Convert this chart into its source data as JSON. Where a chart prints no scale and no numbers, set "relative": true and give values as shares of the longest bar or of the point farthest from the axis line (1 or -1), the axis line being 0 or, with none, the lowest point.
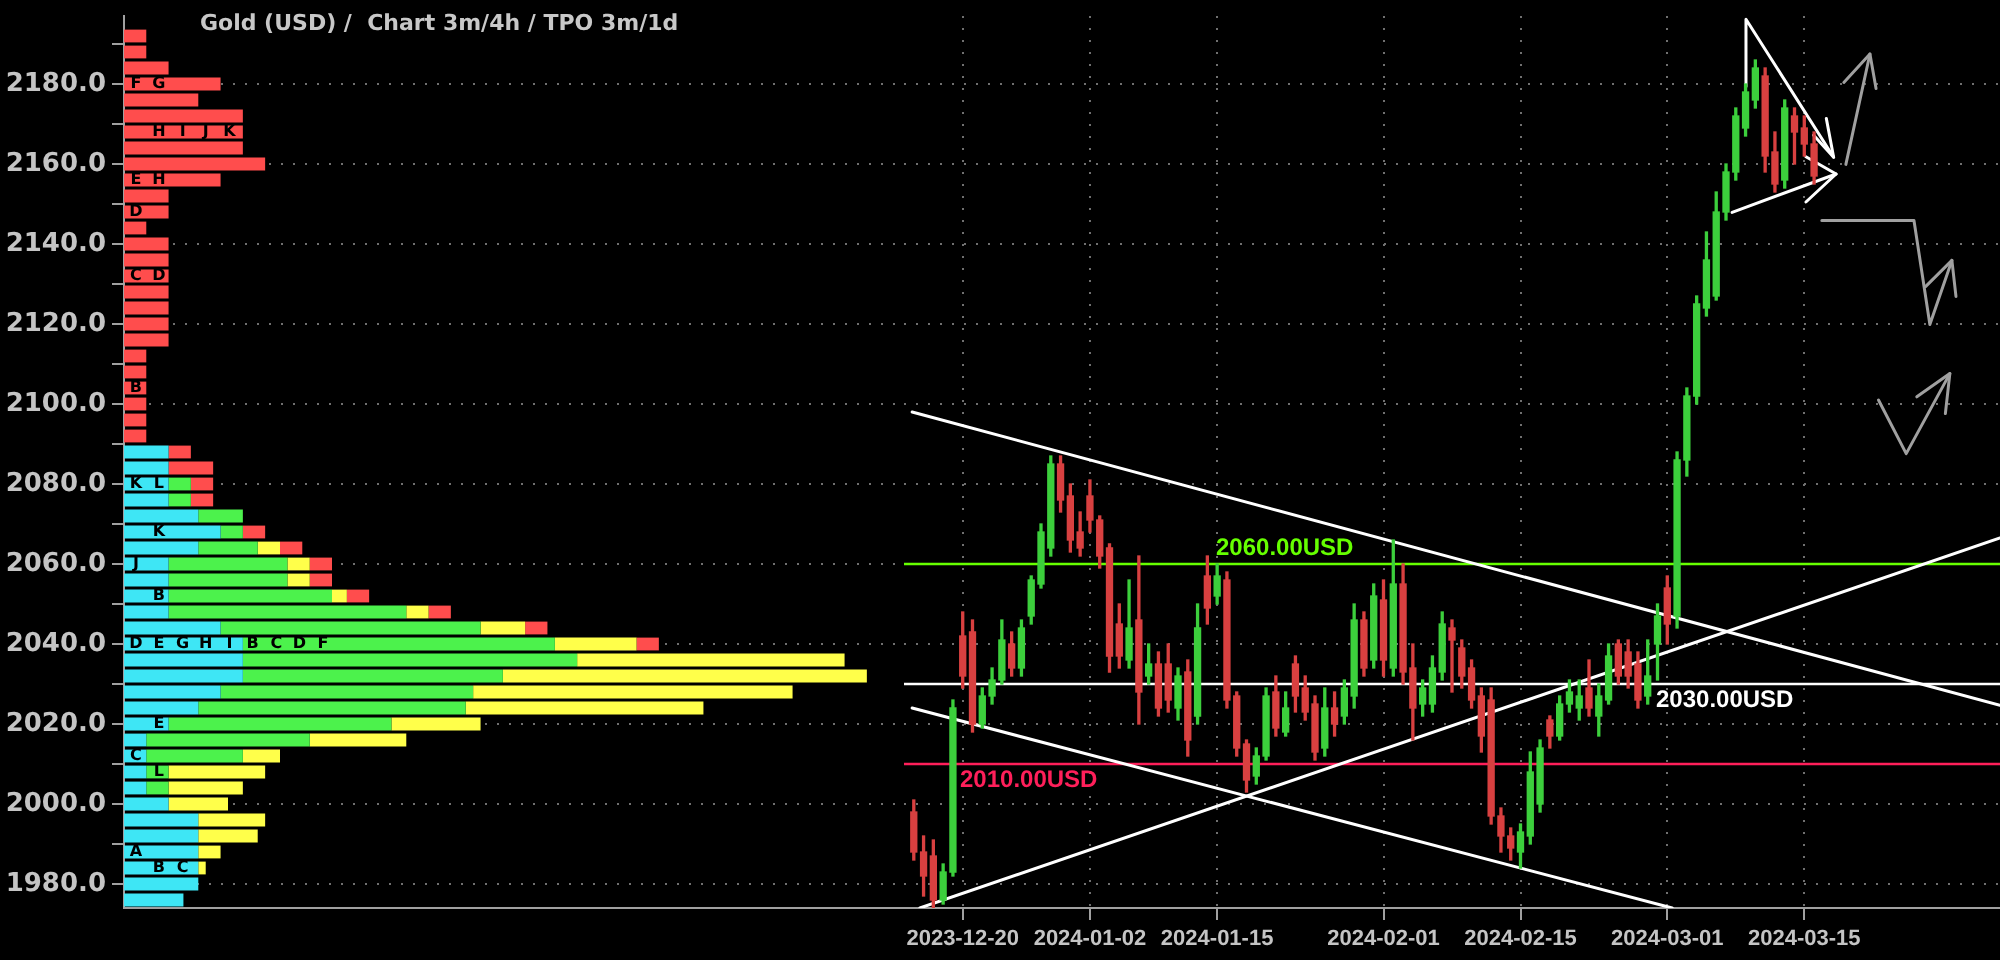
{
  "chart_data": [
    {
      "type": "bar",
      "title": "Gold (USD) /  Chart 3m/4h / TPO 3m/1d",
      "orientation": "horizontal",
      "stacked": true,
      "relative": true,
      "grid": "y",
      "tick_labels": "y",
      "x": [
        1976,
        1980,
        1984,
        1988,
        1992,
        1996,
        2000,
        2004,
        2008,
        2012,
        2016,
        2020,
        2024,
        2028,
        2032,
        2036,
        2040,
        2044,
        2048,
        2052,
        2056,
        2060,
        2064,
        2068,
        2072,
        2076,
        2080,
        2084,
        2088,
        2092,
        2096,
        2100,
        2104,
        2108,
        2112,
        2116,
        2120,
        2124,
        2128,
        2132,
        2136,
        2140,
        2144,
        2148,
        2152,
        2156,
        2160,
        2164,
        2168,
        2172,
        2176,
        2180,
        2184,
        2188,
        2192
      ],
      "ylim": [
        1974,
        2197
      ],
      "yticks": [
        {
          "value": 1980,
          "label": "1980.0"
        },
        {
          "value": 1990,
          "label": null
        },
        {
          "value": 2000,
          "label": "2000.0"
        },
        {
          "value": 2010,
          "label": null
        },
        {
          "value": 2020,
          "label": "2020.0"
        },
        {
          "value": 2030,
          "label": null
        },
        {
          "value": 2040,
          "label": "2040.0"
        },
        {
          "value": 2050,
          "label": null
        },
        {
          "value": 2060,
          "label": "2060.0"
        },
        {
          "value": 2070,
          "label": null
        },
        {
          "value": 2080,
          "label": "2080.0"
        },
        {
          "value": 2090,
          "label": null
        },
        {
          "value": 2100,
          "label": "2100.0"
        },
        {
          "value": 2110,
          "label": null
        },
        {
          "value": 2120,
          "label": "2120.0"
        },
        {
          "value": 2130,
          "label": null
        },
        {
          "value": 2140,
          "label": "2140.0"
        },
        {
          "value": 2150,
          "label": null
        },
        {
          "value": 2160,
          "label": "2160.0"
        },
        {
          "value": 2170,
          "label": null
        },
        {
          "value": 2180,
          "label": "2180.0"
        },
        {
          "value": 2190,
          "label": null
        }
      ],
      "series": [
        {
          "color": "#3ee6f5",
          "values": [
            0.08,
            0.1,
            0.1,
            0.1,
            0.1,
            0.1,
            0.06,
            0.03,
            0.03,
            0.03,
            0.03,
            0.06,
            0.1,
            0.13,
            0.16,
            0.16,
            0.16,
            0.13,
            0.06,
            0.06,
            0.06,
            0.06,
            0.1,
            0.13,
            0.1,
            0.06,
            0.06,
            0.06,
            0.06,
            0,
            0,
            0,
            0,
            0,
            0,
            0,
            0,
            0,
            0,
            0,
            0,
            0,
            0,
            0,
            0,
            0,
            0,
            0,
            0,
            0,
            0,
            0,
            0,
            0,
            0
          ]
        },
        {
          "color": "#4cf24c",
          "values": [
            0,
            0,
            0,
            0,
            0,
            0,
            0,
            0.03,
            0.03,
            0.13,
            0.22,
            0.3,
            0.36,
            0.34,
            0.35,
            0.45,
            0.42,
            0.35,
            0.32,
            0.22,
            0.16,
            0.16,
            0.08,
            0.03,
            0.06,
            0.03,
            0.03,
            0,
            0,
            0,
            0,
            0,
            0,
            0,
            0,
            0,
            0,
            0,
            0,
            0,
            0,
            0,
            0,
            0,
            0,
            0,
            0,
            0,
            0,
            0,
            0,
            0,
            0,
            0,
            0
          ]
        },
        {
          "color": "#ffff4a",
          "values": [
            0,
            0,
            0.01,
            0.03,
            0.08,
            0.09,
            0.08,
            0.1,
            0.13,
            0.05,
            0.13,
            0.12,
            0.32,
            0.43,
            0.49,
            0.36,
            0.11,
            0.06,
            0.03,
            0.02,
            0.03,
            0.03,
            0.03,
            0,
            0,
            0,
            0,
            0,
            0,
            0,
            0,
            0,
            0,
            0,
            0,
            0,
            0,
            0,
            0,
            0,
            0,
            0,
            0,
            0,
            0,
            0,
            0,
            0,
            0,
            0,
            0,
            0,
            0,
            0,
            0
          ]
        },
        {
          "color": "#ff4d4d",
          "values": [
            0,
            0,
            0,
            0,
            0,
            0,
            0,
            0,
            0,
            0,
            0,
            0,
            0,
            0,
            0,
            0,
            0.03,
            0.03,
            0.03,
            0.03,
            0.03,
            0.03,
            0.03,
            0.03,
            0,
            0.03,
            0.03,
            0.06,
            0.03,
            0.03,
            0.03,
            0.03,
            0.03,
            0.03,
            0.03,
            0.06,
            0.06,
            0.06,
            0.06,
            0.06,
            0.06,
            0.06,
            0.03,
            0.06,
            0.06,
            0.13,
            0.19,
            0.16,
            0.16,
            0.16,
            0.1,
            0.13,
            0.06,
            0.03,
            0.03
          ]
        }
      ],
      "annotations": [
        {
          "text": "F",
          "x": 0.016,
          "y": 2180
        },
        {
          "text": "G",
          "x": 0.047,
          "y": 2180
        },
        {
          "text": "H",
          "x": 0.047,
          "y": 2168
        },
        {
          "text": "I",
          "x": 0.079,
          "y": 2168
        },
        {
          "text": "J",
          "x": 0.11,
          "y": 2168
        },
        {
          "text": "K",
          "x": 0.142,
          "y": 2168
        },
        {
          "text": "E",
          "x": 0.016,
          "y": 2156
        },
        {
          "text": "H",
          "x": 0.047,
          "y": 2156
        },
        {
          "text": "D",
          "x": 0.016,
          "y": 2148
        },
        {
          "text": "D",
          "x": 0.047,
          "y": 2132
        },
        {
          "text": "C",
          "x": 0.016,
          "y": 2132
        },
        {
          "text": "B",
          "x": 0.016,
          "y": 2104
        },
        {
          "text": "K",
          "x": 0.016,
          "y": 2080
        },
        {
          "text": "L",
          "x": 0.047,
          "y": 2080
        },
        {
          "text": "K",
          "x": 0.047,
          "y": 2068
        },
        {
          "text": "J",
          "x": 0.016,
          "y": 2060
        },
        {
          "text": "B",
          "x": 0.047,
          "y": 2052
        },
        {
          "text": "D",
          "x": 0.016,
          "y": 2040
        },
        {
          "text": "E",
          "x": 0.047,
          "y": 2040
        },
        {
          "text": "G",
          "x": 0.079,
          "y": 2040
        },
        {
          "text": "H",
          "x": 0.11,
          "y": 2040
        },
        {
          "text": "I",
          "x": 0.142,
          "y": 2040
        },
        {
          "text": "B",
          "x": 0.173,
          "y": 2040
        },
        {
          "text": "C",
          "x": 0.205,
          "y": 2040
        },
        {
          "text": "D",
          "x": 0.236,
          "y": 2040
        },
        {
          "text": "F",
          "x": 0.268,
          "y": 2040
        },
        {
          "text": "E",
          "x": 0.047,
          "y": 2020
        },
        {
          "text": "C",
          "x": 0.016,
          "y": 2012
        },
        {
          "text": "L",
          "x": 0.047,
          "y": 2008
        },
        {
          "text": "A",
          "x": 0.016,
          "y": 1988
        },
        {
          "text": "B",
          "x": 0.047,
          "y": 1984
        },
        {
          "text": "C",
          "x": 0.079,
          "y": 1984
        }
      ]
    },
    {
      "type": "candlestick",
      "grid": true,
      "tick_labels": "x",
      "xlim": [
        "2023-12-14",
        "2024-04-04"
      ],
      "xticks": [
        "2023-12-20",
        "2024-01-02",
        "2024-01-15",
        "2024-02-01",
        "2024-02-15",
        "2024-03-01",
        "2024-03-15"
      ],
      "ylim": [
        1974,
        2197
      ],
      "yticks": [
        1980,
        2000,
        2020,
        2040,
        2060,
        2080,
        2100,
        2120,
        2140,
        2160,
        2180
      ],
      "ref_lines": [
        {
          "axis": "y",
          "value": 2060,
          "label": "2060.00USD",
          "color": "#66ff00"
        },
        {
          "axis": "y",
          "value": 2030,
          "label": "2030.00USD",
          "color": "#ffffff"
        },
        {
          "axis": "y",
          "value": 2010,
          "label": "2010.00USD",
          "color": "#ff1f5a"
        }
      ],
      "series": [
        {
          "type": "candlestick",
          "x": [
            "2023-12-15",
            "2023-12-16",
            "2023-12-17",
            "2023-12-18",
            "2023-12-19",
            "2023-12-20",
            "2023-12-21",
            "2023-12-22",
            "2023-12-23",
            "2023-12-24",
            "2023-12-25",
            "2023-12-26",
            "2023-12-27",
            "2023-12-28",
            "2023-12-29",
            "2023-12-30",
            "2023-12-31",
            "2024-01-01",
            "2024-01-02",
            "2024-01-03",
            "2024-01-04",
            "2024-01-05",
            "2024-01-06",
            "2024-01-07",
            "2024-01-08",
            "2024-01-09",
            "2024-01-10",
            "2024-01-11",
            "2024-01-12",
            "2024-01-13",
            "2024-01-14",
            "2024-01-15",
            "2024-01-16",
            "2024-01-17",
            "2024-01-18",
            "2024-01-19",
            "2024-01-20",
            "2024-01-21",
            "2024-01-22",
            "2024-01-23",
            "2024-01-24",
            "2024-01-25",
            "2024-01-26",
            "2024-01-27",
            "2024-01-28",
            "2024-01-29",
            "2024-01-30",
            "2024-01-31",
            "2024-02-01",
            "2024-02-02",
            "2024-02-03",
            "2024-02-04",
            "2024-02-05",
            "2024-02-06",
            "2024-02-07",
            "2024-02-08",
            "2024-02-09",
            "2024-02-10",
            "2024-02-11",
            "2024-02-12",
            "2024-02-13",
            "2024-02-14",
            "2024-02-15",
            "2024-02-16",
            "2024-02-17",
            "2024-02-18",
            "2024-02-19",
            "2024-02-20",
            "2024-02-21",
            "2024-02-22",
            "2024-02-23",
            "2024-02-24",
            "2024-02-25",
            "2024-02-26",
            "2024-02-27",
            "2024-02-28",
            "2024-02-29",
            "2024-03-01",
            "2024-03-02",
            "2024-03-03",
            "2024-03-04",
            "2024-03-05",
            "2024-03-06",
            "2024-03-07",
            "2024-03-08",
            "2024-03-09",
            "2024-03-10",
            "2024-03-11",
            "2024-03-12",
            "2024-03-13",
            "2024-03-14",
            "2024-03-15",
            "2024-03-16"
          ],
          "ohlc": [
            [
              1998,
              2001,
              1986,
              1988
            ],
            [
              1988,
              1992,
              1977,
              1982
            ],
            [
              1987,
              1991,
              1974,
              1976
            ],
            [
              1976,
              1985,
              1975,
              1983
            ],
            [
              1983,
              2026,
              1982,
              2024
            ],
            [
              2042,
              2048,
              2029,
              2032
            ],
            [
              2043,
              2046,
              2018,
              2020
            ],
            [
              2020,
              2029,
              2019,
              2027
            ],
            [
              2027,
              2034,
              2025,
              2031
            ],
            [
              2031,
              2046,
              2030,
              2041
            ],
            [
              2040,
              2043,
              2032,
              2034
            ],
            [
              2034,
              2046,
              2032,
              2044
            ],
            [
              2047,
              2057,
              2045,
              2056
            ],
            [
              2055,
              2070,
              2054,
              2068
            ],
            [
              2064,
              2087,
              2062,
              2085
            ],
            [
              2085,
              2087,
              2073,
              2076
            ],
            [
              2077,
              2080,
              2063,
              2066
            ],
            [
              2068,
              2073,
              2062,
              2064
            ],
            [
              2077,
              2081,
              2068,
              2071
            ],
            [
              2071,
              2072,
              2059,
              2062
            ],
            [
              2064,
              2065,
              2033,
              2037
            ],
            [
              2045,
              2050,
              2034,
              2037
            ],
            [
              2036,
              2056,
              2034,
              2044
            ],
            [
              2046,
              2062,
              2020,
              2028
            ],
            [
              2032,
              2040,
              2030,
              2035
            ],
            [
              2035,
              2038,
              2022,
              2024
            ],
            [
              2035,
              2040,
              2023,
              2026
            ],
            [
              2024,
              2034,
              2021,
              2032
            ],
            [
              2033,
              2036,
              2012,
              2016
            ],
            [
              2022,
              2050,
              2020,
              2044
            ],
            [
              2057,
              2062,
              2045,
              2049
            ],
            [
              2052,
              2060,
              2050,
              2057
            ],
            [
              2056,
              2058,
              2024,
              2026
            ],
            [
              2027,
              2028,
              2012,
              2014
            ],
            [
              2015,
              2016,
              2003,
              2006
            ],
            [
              2007,
              2014,
              2005,
              2012
            ],
            [
              2012,
              2029,
              2011,
              2027
            ],
            [
              2028,
              2032,
              2017,
              2019
            ],
            [
              2018,
              2028,
              2017,
              2024
            ],
            [
              2035,
              2037,
              2023,
              2027
            ],
            [
              2029,
              2032,
              2021,
              2023
            ],
            [
              2025,
              2027,
              2011,
              2013
            ],
            [
              2014,
              2029,
              2012,
              2024
            ],
            [
              2024,
              2028,
              2017,
              2020
            ],
            [
              2022,
              2031,
              2020,
              2029
            ],
            [
              2027,
              2050,
              2024,
              2046
            ],
            [
              2046,
              2048,
              2032,
              2034
            ],
            [
              2036,
              2055,
              2034,
              2052
            ],
            [
              2051,
              2056,
              2032,
              2036
            ],
            [
              2034,
              2066,
              2032,
              2055
            ],
            [
              2055,
              2060,
              2030,
              2033
            ],
            [
              2034,
              2040,
              2016,
              2024
            ],
            [
              2025,
              2031,
              2022,
              2029
            ],
            [
              2025,
              2037,
              2023,
              2034
            ],
            [
              2033,
              2048,
              2031,
              2045
            ],
            [
              2044,
              2046,
              2028,
              2041
            ],
            [
              2039,
              2041,
              2029,
              2032
            ],
            [
              2034,
              2036,
              2024,
              2026
            ],
            [
              2027,
              2029,
              2013,
              2017
            ],
            [
              2026,
              2029,
              1995,
              1997
            ],
            [
              1997,
              1999,
              1988,
              1992
            ],
            [
              1992,
              1994,
              1986,
              1989
            ],
            [
              1988,
              1995,
              1984,
              1993
            ],
            [
              1992,
              2013,
              1990,
              2008
            ],
            [
              2000,
              2016,
              1998,
              2014
            ],
            [
              2021,
              2022,
              2014,
              2017
            ],
            [
              2017,
              2027,
              2016,
              2025
            ],
            [
              2025,
              2031,
              2023,
              2028
            ],
            [
              2024,
              2031,
              2021,
              2027
            ],
            [
              2029,
              2036,
              2022,
              2024
            ],
            [
              2022,
              2030,
              2017,
              2027
            ],
            [
              2026,
              2040,
              2025,
              2037
            ],
            [
              2040,
              2041,
              2030,
              2032
            ],
            [
              2038,
              2041,
              2029,
              2032
            ],
            [
              2035,
              2038,
              2024,
              2026
            ],
            [
              2027,
              2041,
              2025,
              2032
            ],
            [
              2040,
              2050,
              2031,
              2047
            ],
            [
              2054,
              2057,
              2040,
              2045
            ],
            [
              2047,
              2088,
              2044,
              2086
            ],
            [
              2086,
              2104,
              2082,
              2102
            ],
            [
              2102,
              2127,
              2100,
              2125
            ],
            [
              2124,
              2143,
              2122,
              2136
            ],
            [
              2127,
              2153,
              2126,
              2148
            ],
            [
              2148,
              2160,
              2146,
              2158
            ],
            [
              2158,
              2174,
              2156,
              2172
            ],
            [
              2169,
              2180,
              2167,
              2178
            ],
            [
              2176,
              2186,
              2174,
              2184
            ],
            [
              2182,
              2184,
              2158,
              2162
            ],
            [
              2163,
              2168,
              2153,
              2155
            ],
            [
              2156,
              2176,
              2154,
              2174
            ],
            [
              2172,
              2174,
              2160,
              2168
            ],
            [
              2169,
              2172,
              2162,
              2165
            ],
            [
              2165,
              2168,
              2155,
              2157
            ]
          ],
          "colors": [
            "#d84040",
            "#d84040",
            "#d84040",
            "#3ccf3c",
            "#3ccf3c",
            "#d84040",
            "#d84040",
            "#3ccf3c",
            "#3ccf3c",
            "#3ccf3c",
            "#d84040",
            "#3ccf3c",
            "#3ccf3c",
            "#3ccf3c",
            "#3ccf3c",
            "#d84040",
            "#d84040",
            "#d84040",
            "#d84040",
            "#d84040",
            "#d84040",
            "#d84040",
            "#3ccf3c",
            "#d84040",
            "#3ccf3c",
            "#d84040",
            "#d84040",
            "#3ccf3c",
            "#d84040",
            "#3ccf3c",
            "#d84040",
            "#3ccf3c",
            "#d84040",
            "#d84040",
            "#d84040",
            "#3ccf3c",
            "#3ccf3c",
            "#d84040",
            "#3ccf3c",
            "#d84040",
            "#d84040",
            "#d84040",
            "#3ccf3c",
            "#d84040",
            "#3ccf3c",
            "#3ccf3c",
            "#d84040",
            "#3ccf3c",
            "#d84040",
            "#3ccf3c",
            "#d84040",
            "#d84040",
            "#3ccf3c",
            "#3ccf3c",
            "#3ccf3c",
            "#d84040",
            "#d84040",
            "#d84040",
            "#d84040",
            "#d84040",
            "#d84040",
            "#d84040",
            "#3ccf3c",
            "#3ccf3c",
            "#3ccf3c",
            "#d84040",
            "#3ccf3c",
            "#3ccf3c",
            "#3ccf3c",
            "#d84040",
            "#3ccf3c",
            "#3ccf3c",
            "#d84040",
            "#d84040",
            "#d84040",
            "#3ccf3c",
            "#3ccf3c",
            "#d84040",
            "#3ccf3c",
            "#3ccf3c",
            "#3ccf3c",
            "#3ccf3c",
            "#3ccf3c",
            "#3ccf3c",
            "#3ccf3c",
            "#3ccf3c",
            "#3ccf3c",
            "#d84040",
            "#d84040",
            "#3ccf3c",
            "#d84040",
            "#d84040",
            "#d84040"
          ]
        },
        {
          "type": "line",
          "color": "#ffffff",
          "x": [
            "2023-12-14T20:00",
            "2024-04-04"
          ],
          "values": [
            2098,
            2024.7
          ]
        },
        {
          "type": "line",
          "color": "#ffffff",
          "x": [
            "2023-12-14T20:00",
            "2024-03-01T12:00"
          ],
          "values": [
            2024,
            1974
          ]
        },
        {
          "type": "line",
          "color": "#ffffff",
          "x": [
            "2023-12-15T15:00",
            "2024-04-04"
          ],
          "values": [
            1974,
            2066.5
          ]
        },
        {
          "type": "line",
          "color": "#ffffff",
          "x": [
            "2024-03-09T01:00",
            "2024-03-09T01:00",
            "2024-03-18"
          ],
          "values": [
            2179.4,
            2196.2,
            2161.7
          ]
        },
        {
          "type": "line",
          "color": "#ffffff",
          "x": [
            "2024-03-17T06:00",
            "2024-03-18",
            "2024-03-15T23:00"
          ],
          "values": [
            2171.4,
            2161.7,
            2167.2
          ]
        },
        {
          "type": "line",
          "color": "#ffffff",
          "x": [
            "2024-03-07T15:00",
            "2024-03-18T06:00"
          ],
          "values": [
            2147.9,
            2157.5
          ]
        },
        {
          "type": "line",
          "color": "#ffffff",
          "x": [
            "2024-03-15T04:00",
            "2024-03-18T06:00",
            "2024-03-15T04:00"
          ],
          "values": [
            2161.8,
            2157.5,
            2150.5
          ]
        },
        {
          "type": "line",
          "color": "#a0a0a0",
          "x": [
            "2024-03-19T06:00",
            "2024-03-21T17:00"
          ],
          "values": [
            2159.9,
            2187.5
          ]
        },
        {
          "type": "line",
          "color": "#a0a0a0",
          "x": [
            "2024-03-19T01:00",
            "2024-03-21T17:00",
            "2024-03-22T08:00"
          ],
          "values": [
            2180.4,
            2187.5,
            2178.9
          ]
        },
        {
          "type": "line",
          "color": "#a0a0a0",
          "x": [
            "2024-03-16T19:00",
            "2024-03-26T05:00",
            "2024-03-27T20:00",
            "2024-03-30T02:00"
          ],
          "values": [
            2145.9,
            2145.9,
            2119.9,
            2135.9
          ]
        },
        {
          "type": "line",
          "color": "#a0a0a0",
          "x": [
            "2024-03-27T10:00",
            "2024-03-30T02:00",
            "2024-03-30T12:00"
          ],
          "values": [
            2129.4,
            2135.9,
            2126.9
          ]
        },
        {
          "type": "line",
          "color": "#a0a0a0",
          "x": [
            "2024-03-22T14:00",
            "2024-03-25T10:00",
            "2024-03-29T21:00"
          ],
          "values": [
            2101,
            2087.6,
            2107.6
          ]
        },
        {
          "type": "line",
          "color": "#a0a0a0",
          "x": [
            "2024-03-26T12:00",
            "2024-03-29T21:00",
            "2024-03-29T10:00"
          ],
          "values": [
            2101.8,
            2107.6,
            2097.6
          ]
        }
      ]
    }
  ]
}
